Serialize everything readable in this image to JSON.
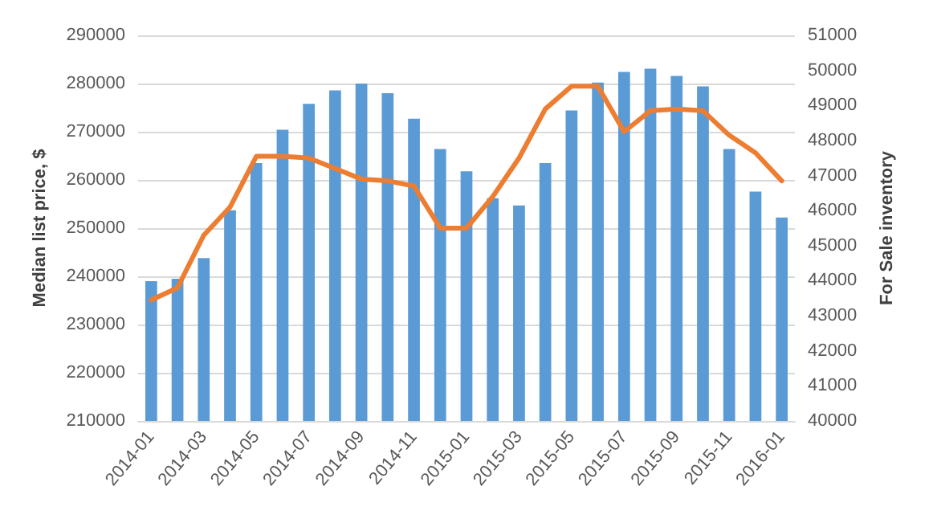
{
  "chart_data": {
    "type": "bar",
    "ylabel": "Median list price, $",
    "y2label": "For Sale inventory",
    "categories": [
      "2014-01",
      null,
      "2014-03",
      null,
      "2014-05",
      null,
      "2014-07",
      null,
      "2014-09",
      null,
      "2014-11",
      null,
      "2015-01",
      null,
      "2015-03",
      null,
      "2015-05",
      null,
      "2015-07",
      null,
      "2015-09",
      null,
      "2015-11",
      null,
      "2016-01"
    ],
    "series": [
      {
        "color": "#5b9bd5",
        "values": [
          239000,
          239500,
          243800,
          253700,
          263500,
          270400,
          275800,
          278600,
          280000,
          278000,
          272700,
          266400,
          261800,
          256200,
          254700,
          263500,
          274400,
          280200,
          282400,
          283100,
          281600,
          279400,
          266400,
          257600,
          252200
        ]
      },
      {
        "type": "line",
        "axis": "y2",
        "color": "#ed7d31",
        "values": [
          43450,
          43800,
          45300,
          46100,
          47550,
          47550,
          47500,
          47200,
          46900,
          46850,
          46700,
          45500,
          45500,
          46400,
          47500,
          48900,
          49550,
          49550,
          48250,
          48850,
          48900,
          48850,
          48150,
          47650,
          46850
        ]
      }
    ],
    "ylim": [
      210000,
      290000
    ],
    "yticks": [
      210000,
      220000,
      230000,
      240000,
      250000,
      260000,
      270000,
      280000,
      290000
    ],
    "y2lim": [
      40000,
      51000
    ],
    "y2ticks": [
      40000,
      41000,
      42000,
      43000,
      44000,
      45000,
      46000,
      47000,
      48000,
      49000,
      50000,
      51000
    ],
    "grid": "y",
    "marker": "none",
    "line_style": "solid"
  }
}
